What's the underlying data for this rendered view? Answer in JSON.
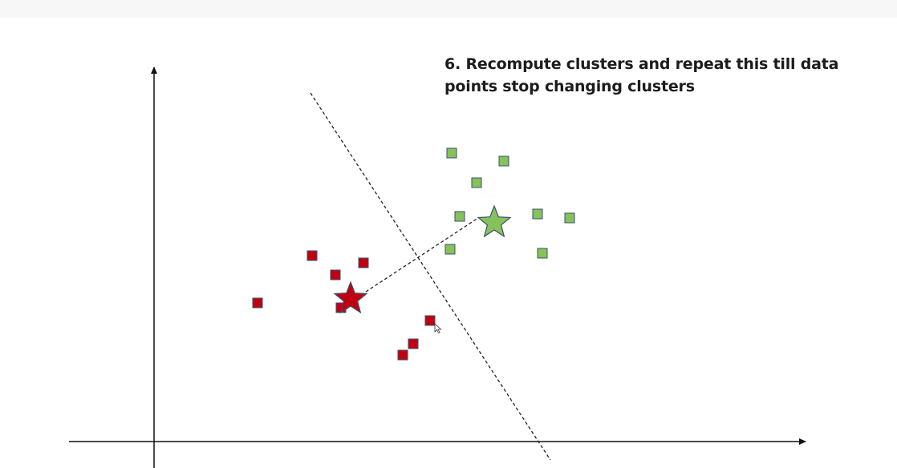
{
  "slide": {
    "title": "6. Recompute clusters and repeat this till data points stop changing clusters"
  },
  "colors": {
    "cluster_red": "#c00010",
    "cluster_green": "#86c25a",
    "marker_border": "#3e4f6c",
    "axis": "#111111"
  },
  "clusters": [
    {
      "name": "red",
      "color_key": "cluster_red",
      "centroid": [
        437,
        373
      ],
      "points": [
        [
          389,
          319
        ],
        [
          418,
          343
        ],
        [
          453,
          328
        ],
        [
          321,
          378
        ],
        [
          425,
          384
        ],
        [
          536,
          400
        ],
        [
          515,
          429
        ],
        [
          502,
          443
        ]
      ]
    },
    {
      "name": "green",
      "color_key": "cluster_green",
      "centroid": [
        616,
        278
      ],
      "points": [
        [
          563,
          191
        ],
        [
          628,
          201
        ],
        [
          594,
          228
        ],
        [
          573,
          270
        ],
        [
          670,
          267
        ],
        [
          710,
          272
        ],
        [
          561,
          311
        ],
        [
          676,
          316
        ]
      ]
    }
  ]
}
